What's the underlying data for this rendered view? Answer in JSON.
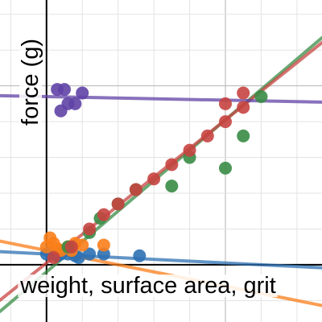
{
  "chart_data": {
    "type": "scatter",
    "xlabel": "weight, surface area, grit",
    "ylabel": "force (g)",
    "grid": true,
    "axis_ranges": {
      "x": [
        -1.3,
        7.7
      ],
      "y": [
        -1.6,
        7.4
      ]
    },
    "series": [
      {
        "color": "#2d70b3",
        "points": [
          [
            0,
            0.3
          ],
          [
            0.2,
            0.3
          ],
          [
            0.4,
            0.3
          ],
          [
            0.6,
            0.3
          ],
          [
            0.8,
            0.25
          ],
          [
            1.2,
            0.3
          ],
          [
            0.3,
            0.25
          ],
          [
            0.1,
            0.35
          ],
          [
            0.9,
            0.2
          ],
          [
            1.6,
            0.3
          ],
          [
            2.6,
            0.25
          ]
        ],
        "fit": {
          "slope": -0.05,
          "intercept": 0.3
        }
      },
      {
        "color": "#fa7e19",
        "points": [
          [
            0,
            0.5
          ],
          [
            0.2,
            0.6
          ],
          [
            0.4,
            0.4
          ],
          [
            0.1,
            0.75
          ],
          [
            0.6,
            0.5
          ],
          [
            0.8,
            0.6
          ],
          [
            1.0,
            0.55
          ],
          [
            0.3,
            0.45
          ],
          [
            1.6,
            0.55
          ],
          [
            0.7,
            0.4
          ]
        ],
        "fit": {
          "slope": -0.2,
          "intercept": 0.4
        }
      },
      {
        "color": "#388c46",
        "points": [
          [
            0.6,
            0.5
          ],
          [
            1.2,
            0.9
          ],
          [
            1.5,
            1.3
          ],
          [
            2.0,
            1.7
          ],
          [
            2.5,
            2.1
          ],
          [
            3.5,
            2.2
          ],
          [
            4.0,
            3.0
          ],
          [
            5.0,
            2.7
          ],
          [
            5.5,
            3.6
          ],
          [
            6.0,
            4.7
          ]
        ],
        "fit": {
          "slope": 0.85,
          "intercept": -0.2
        }
      },
      {
        "color": "#c74440",
        "points": [
          [
            0.2,
            0.2
          ],
          [
            0.7,
            0.5
          ],
          [
            1.2,
            1.0
          ],
          [
            1.6,
            1.4
          ],
          [
            2.0,
            1.7
          ],
          [
            2.5,
            2.1
          ],
          [
            3.0,
            2.4
          ],
          [
            3.5,
            2.8
          ],
          [
            4.0,
            3.2
          ],
          [
            4.5,
            3.6
          ],
          [
            5.0,
            4.0
          ],
          [
            5.5,
            4.4
          ],
          [
            5.5,
            4.8
          ],
          [
            5.0,
            4.5
          ]
        ],
        "fit": {
          "slope": 0.8,
          "intercept": 0.05
        }
      },
      {
        "color": "#6042a6",
        "points": [
          [
            0.3,
            4.9
          ],
          [
            0.5,
            4.9
          ],
          [
            1.0,
            4.8
          ],
          [
            0.8,
            4.5
          ],
          [
            0.6,
            4.5
          ],
          [
            0.4,
            4.3
          ]
        ],
        "fit": {
          "slope": -0.02,
          "intercept": 4.7
        }
      }
    ]
  }
}
